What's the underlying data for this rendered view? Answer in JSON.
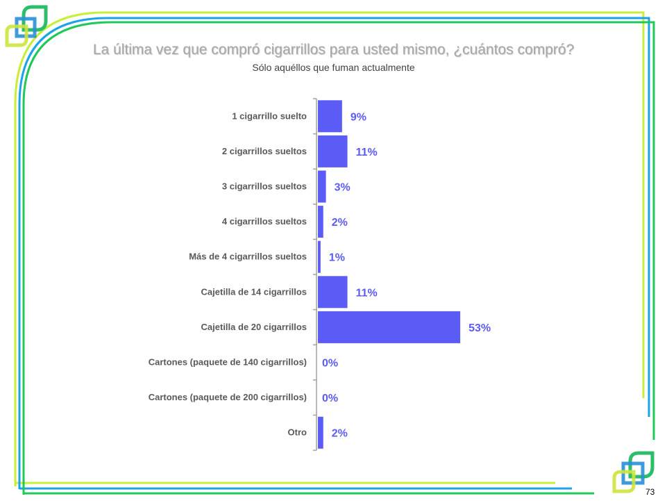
{
  "page_number": "73",
  "colors": {
    "bar": "#5b5bf5",
    "line_yellow": "#c8ee3a",
    "line_blue": "#1aa3ea",
    "line_green": "#1ec85a"
  },
  "chart_data": {
    "type": "bar",
    "orientation": "horizontal",
    "title": "La última vez que compró cigarrillos para usted mismo, ¿cuántos compró?",
    "subtitle": "Sólo aquéllos que fuman actualmente",
    "categories": [
      "1 cigarrillo suelto",
      "2 cigarrillos sueltos",
      "3 cigarrillos sueltos",
      "4 cigarrillos sueltos",
      "Más de 4 cigarrillos sueltos",
      "Cajetilla de 14 cigarrillos",
      "Cajetilla de 20 cigarrillos",
      "Cartones (paquete de  140 cigarrillos)",
      "Cartones (paquete de  200 cigarrillos)",
      "Otro"
    ],
    "values": [
      9,
      11,
      3,
      2,
      1,
      11,
      53,
      0,
      0,
      2
    ],
    "value_labels": [
      "9%",
      "11%",
      "3%",
      "2%",
      "1%",
      "11%",
      "53%",
      "0%",
      "0%",
      "2%"
    ],
    "unit": "%",
    "xlim": [
      0,
      100
    ],
    "grid": false
  }
}
